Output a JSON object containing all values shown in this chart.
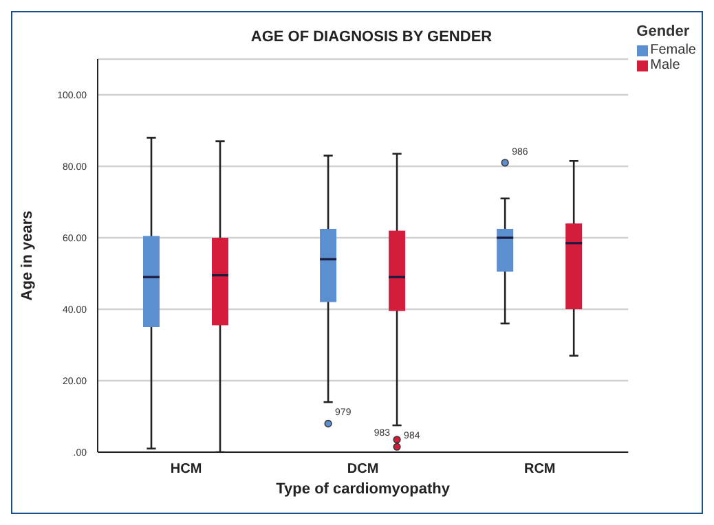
{
  "chart_data": {
    "type": "box",
    "title": "AGE OF DIAGNOSIS BY GENDER",
    "xlabel": "Type of cardiomyopathy",
    "ylabel": "Age in years",
    "legend_title": "Gender",
    "categories": [
      "HCM",
      "DCM",
      "RCM"
    ],
    "series": [
      {
        "name": "Female",
        "color": "#5b8fd0",
        "boxes": [
          {
            "low": 1,
            "q1": 35,
            "median": 49,
            "q3": 60.5,
            "high": 88
          },
          {
            "low": 14,
            "q1": 42,
            "median": 54,
            "q3": 62.5,
            "high": 83,
            "outliers": [
              8
            ]
          },
          {
            "low": 36,
            "q1": 50.5,
            "median": 60,
            "q3": 62.5,
            "high": 71,
            "outliers": [
              81
            ]
          }
        ]
      },
      {
        "name": "Male",
        "color": "#d41c3c",
        "boxes": [
          {
            "low": 0,
            "q1": 35.5,
            "median": 49.5,
            "q3": 60,
            "high": 87
          },
          {
            "low": 7.5,
            "q1": 39.5,
            "median": 49,
            "q3": 62,
            "high": 83.5,
            "outliers": [
              3.5,
              1.5
            ]
          },
          {
            "low": 27,
            "q1": 40,
            "median": 58.5,
            "q3": 64,
            "high": 81.5
          }
        ]
      }
    ],
    "annotations": [
      "979",
      "983",
      "984",
      "986"
    ],
    "ylim": [
      0,
      110
    ],
    "yticks": [
      {
        "value": 0,
        "label": ".00"
      },
      {
        "value": 20,
        "label": "20.00"
      },
      {
        "value": 40,
        "label": "40.00"
      },
      {
        "value": 60,
        "label": "60.00"
      },
      {
        "value": 80,
        "label": "80.00"
      },
      {
        "value": 100,
        "label": "100.00"
      }
    ],
    "grid": "y",
    "legend": "top right"
  }
}
